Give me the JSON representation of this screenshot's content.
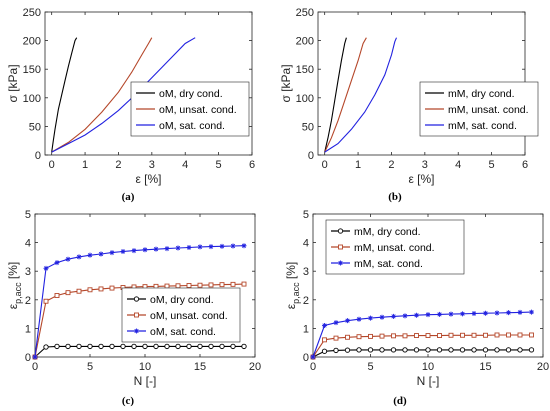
{
  "colors": {
    "dry": "#000000",
    "unsat": "#b5472a",
    "sat": "#2222e0",
    "axis": "#262626"
  },
  "chart_data": [
    {
      "id": "a",
      "type": "line",
      "panel_label": "(a)",
      "xlabel": "ε [%]",
      "ylabel": "σ [kPa]",
      "xlim": [
        -0.2,
        6
      ],
      "ylim": [
        0,
        250
      ],
      "xticks": [
        0,
        1,
        2,
        3,
        4,
        5,
        6
      ],
      "yticks": [
        0,
        50,
        100,
        150,
        200,
        250
      ],
      "legend_position": "lower-right",
      "markers": false,
      "series": [
        {
          "name": "oM, dry cond.",
          "color_key": "dry",
          "x": [
            0,
            0.05,
            0.1,
            0.2,
            0.3,
            0.4,
            0.5,
            0.6,
            0.7,
            0.75
          ],
          "y": [
            5,
            25,
            45,
            80,
            105,
            130,
            155,
            178,
            200,
            205
          ]
        },
        {
          "name": "oM, unsat. cond.",
          "color_key": "unsat",
          "x": [
            0,
            0.5,
            1.0,
            1.5,
            2.0,
            2.4,
            2.7,
            2.9,
            3.0
          ],
          "y": [
            5,
            22,
            45,
            75,
            110,
            145,
            175,
            195,
            205
          ]
        },
        {
          "name": "oM, sat. cond.",
          "color_key": "sat",
          "x": [
            0,
            0.5,
            1.0,
            1.5,
            2.0,
            2.5,
            3.0,
            3.5,
            4.0,
            4.3
          ],
          "y": [
            5,
            20,
            35,
            55,
            78,
            105,
            135,
            165,
            195,
            205
          ]
        }
      ]
    },
    {
      "id": "b",
      "type": "line",
      "panel_label": "(b)",
      "xlabel": "ε [%]",
      "ylabel": "σ [kPa]",
      "xlim": [
        -0.2,
        6
      ],
      "ylim": [
        0,
        250
      ],
      "xticks": [
        0,
        1,
        2,
        3,
        4,
        5,
        6
      ],
      "yticks": [
        0,
        50,
        100,
        150,
        200,
        250
      ],
      "legend_position": "lower-right",
      "markers": false,
      "series": [
        {
          "name": "mM, dry cond.",
          "color_key": "dry",
          "x": [
            0,
            0.1,
            0.2,
            0.3,
            0.4,
            0.5,
            0.6,
            0.65
          ],
          "y": [
            5,
            30,
            60,
            95,
            130,
            165,
            195,
            205
          ]
        },
        {
          "name": "mM, unsat. cond.",
          "color_key": "unsat",
          "x": [
            0,
            0.2,
            0.4,
            0.6,
            0.8,
            1.0,
            1.15,
            1.25
          ],
          "y": [
            5,
            30,
            60,
            95,
            130,
            165,
            195,
            205
          ]
        },
        {
          "name": "mM, sat. cond.",
          "color_key": "sat",
          "x": [
            0,
            0.4,
            0.8,
            1.2,
            1.5,
            1.8,
            2.0,
            2.1,
            2.15
          ],
          "y": [
            5,
            20,
            45,
            75,
            105,
            140,
            175,
            198,
            205
          ]
        }
      ]
    },
    {
      "id": "c",
      "type": "line",
      "panel_label": "(c)",
      "xlabel": "N [-]",
      "ylabel": "ε",
      "ylabel_subscript": "p,acc",
      "ylabel_suffix": "[%]",
      "xlim": [
        0,
        20
      ],
      "ylim": [
        0,
        5
      ],
      "xticks": [
        0,
        5,
        10,
        15,
        20
      ],
      "yticks": [
        0,
        1,
        2,
        3,
        4,
        5
      ],
      "legend_position": "lower-right",
      "markers": true,
      "series": [
        {
          "name": "oM, dry cond.",
          "color_key": "dry",
          "marker": "circle",
          "x": [
            0,
            1,
            2,
            3,
            4,
            5,
            6,
            7,
            8,
            9,
            10,
            11,
            12,
            13,
            14,
            15,
            16,
            17,
            18,
            19
          ],
          "y": [
            0,
            0.35,
            0.37,
            0.37,
            0.37,
            0.37,
            0.37,
            0.37,
            0.37,
            0.37,
            0.37,
            0.37,
            0.37,
            0.37,
            0.37,
            0.37,
            0.37,
            0.37,
            0.37,
            0.37
          ]
        },
        {
          "name": "oM, unsat. cond.",
          "color_key": "unsat",
          "marker": "square",
          "x": [
            0,
            1,
            2,
            3,
            4,
            5,
            6,
            7,
            8,
            9,
            10,
            11,
            12,
            13,
            14,
            15,
            16,
            17,
            18,
            19
          ],
          "y": [
            0,
            1.95,
            2.15,
            2.25,
            2.3,
            2.35,
            2.38,
            2.41,
            2.43,
            2.45,
            2.46,
            2.47,
            2.48,
            2.49,
            2.5,
            2.51,
            2.52,
            2.53,
            2.54,
            2.55
          ]
        },
        {
          "name": "oM, sat. cond.",
          "color_key": "sat",
          "marker": "star",
          "x": [
            0,
            1,
            2,
            3,
            4,
            5,
            6,
            7,
            8,
            9,
            10,
            11,
            12,
            13,
            14,
            15,
            16,
            17,
            18,
            19
          ],
          "y": [
            0,
            3.1,
            3.3,
            3.42,
            3.5,
            3.56,
            3.6,
            3.65,
            3.69,
            3.72,
            3.75,
            3.77,
            3.79,
            3.81,
            3.83,
            3.85,
            3.86,
            3.87,
            3.88,
            3.89
          ]
        }
      ]
    },
    {
      "id": "d",
      "type": "line",
      "panel_label": "(d)",
      "xlabel": "N [-]",
      "ylabel": "ε",
      "ylabel_subscript": "p,acc",
      "ylabel_suffix": "[%]",
      "xlim": [
        0,
        20
      ],
      "ylim": [
        0,
        5
      ],
      "xticks": [
        0,
        5,
        10,
        15,
        20
      ],
      "yticks": [
        0,
        1,
        2,
        3,
        4,
        5
      ],
      "legend_position": "top-right",
      "markers": true,
      "series": [
        {
          "name": "mM, dry cond.",
          "color_key": "dry",
          "marker": "circle",
          "x": [
            0,
            1,
            2,
            3,
            4,
            5,
            6,
            7,
            8,
            9,
            10,
            11,
            12,
            13,
            14,
            15,
            16,
            17,
            18,
            19
          ],
          "y": [
            0,
            0.2,
            0.23,
            0.24,
            0.25,
            0.25,
            0.25,
            0.25,
            0.25,
            0.25,
            0.25,
            0.25,
            0.25,
            0.25,
            0.25,
            0.25,
            0.25,
            0.25,
            0.25,
            0.25
          ]
        },
        {
          "name": "mM, unsat. cond.",
          "color_key": "unsat",
          "marker": "square",
          "x": [
            0,
            1,
            2,
            3,
            4,
            5,
            6,
            7,
            8,
            9,
            10,
            11,
            12,
            13,
            14,
            15,
            16,
            17,
            18,
            19
          ],
          "y": [
            0,
            0.6,
            0.66,
            0.69,
            0.71,
            0.72,
            0.73,
            0.74,
            0.74,
            0.75,
            0.75,
            0.75,
            0.76,
            0.76,
            0.76,
            0.76,
            0.77,
            0.77,
            0.77,
            0.77
          ]
        },
        {
          "name": "mM, sat. cond.",
          "color_key": "sat",
          "marker": "star",
          "x": [
            0,
            1,
            2,
            3,
            4,
            5,
            6,
            7,
            8,
            9,
            10,
            11,
            12,
            13,
            14,
            15,
            16,
            17,
            18,
            19
          ],
          "y": [
            0,
            1.1,
            1.2,
            1.27,
            1.32,
            1.36,
            1.39,
            1.42,
            1.44,
            1.46,
            1.48,
            1.49,
            1.5,
            1.51,
            1.52,
            1.53,
            1.54,
            1.55,
            1.56,
            1.57
          ]
        }
      ]
    }
  ]
}
